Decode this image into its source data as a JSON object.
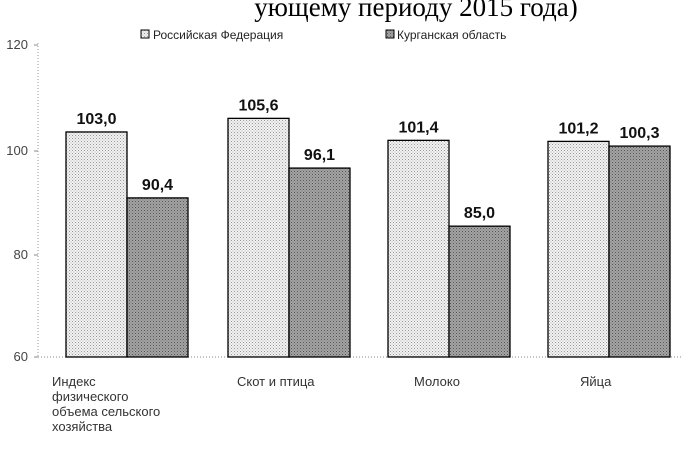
{
  "header": {
    "title_fragment": "ующему периоду 2015 года)"
  },
  "chart_data": {
    "type": "bar",
    "categories": [
      [
        "Индекс",
        "физического",
        "объема сельского",
        "хозяйства"
      ],
      [
        "Скот и птица"
      ],
      [
        "Молоко"
      ],
      [
        "Яйца"
      ]
    ],
    "series": [
      {
        "name": "Российская Федерация",
        "values": [
          103.0,
          105.6,
          101.4,
          101.2
        ],
        "labels": [
          "103,0",
          "105,6",
          "101,4",
          "101,2"
        ],
        "color": "#e4e4e4"
      },
      {
        "name": "Курганская область",
        "values": [
          90.4,
          96.1,
          85.0,
          100.3
        ],
        "labels": [
          "90,4",
          "96,1",
          "85,0",
          "100,3"
        ],
        "color": "#8c8c8c"
      }
    ],
    "yticks": [
      "120",
      "100",
      "80",
      "60"
    ],
    "ylim": [
      60,
      120
    ],
    "legend_position": "top",
    "grid": false,
    "title": "",
    "xlabel": "",
    "ylabel": ""
  }
}
